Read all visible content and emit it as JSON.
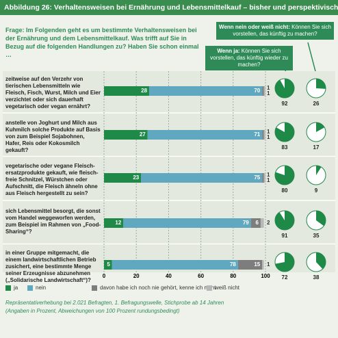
{
  "header": {
    "title": "Abbildung 26: Verhaltensweisen bei Ernährung und Lebensmittelkauf – bisher und perspektivisch"
  },
  "chart_data": {
    "type": "bar",
    "orientation": "horizontal",
    "stacked": true,
    "question": "Frage: Im Folgenden geht es um bestimmte Verhaltensweisen bei der Ernährung und dem Lebensmittelkauf. Was trifft auf Sie in Bezug auf die folgenden Handlungen zu? Haben Sie schon einmal …",
    "categories": [
      "zeitweise auf den Verzehr von tierischen Lebensmitteln wie Fleisch, Fisch, Wurst, Milch und Eier verzichtet oder sich dauerhaft vegetarisch oder vegan ernährt?",
      "anstelle von Joghurt und Milch aus Kuhmilch solche Produkte auf Basis von zum Beispiel Sojabohnen, Hafer, Reis oder Kokosmilch gekauft?",
      "vegetarische oder vegane Fleisch-ersatzprodukte gekauft, wie fleisch-freie Schnitzel, Würstchen oder Aufschnitt, die Fleisch ähneln ohne aus Fleisch hergestellt zu sein?",
      "sich Lebensmittel besorgt, die sonst vom Handel weggeworfen werden, zum Beispiel im Rahmen von „Food-Sharing“?",
      "in einer Gruppe mitgemacht, die einem landwirtschaftlichen Betrieb zusichert, eine bestimmte Menge seiner Erzeugnisse abzunehmen („Solidarische Landwirtschaft“)?"
    ],
    "series": [
      {
        "name": "ja",
        "color": "#1f8a48",
        "values": [
          28,
          27,
          23,
          12,
          5
        ]
      },
      {
        "name": "nein",
        "color": "#5fa8bf",
        "values": [
          70,
          71,
          75,
          79,
          78
        ]
      },
      {
        "name": "davon habe ich noch nie gehört, kenne ich nicht",
        "color": "#7d7d7d",
        "values": [
          1,
          1,
          1,
          6,
          15
        ]
      },
      {
        "name": "weiß nicht",
        "color": "#b8b8b8",
        "values": [
          1,
          1,
          1,
          2,
          1
        ]
      }
    ],
    "xlim": [
      0,
      100
    ],
    "xticks": [
      0,
      20,
      40,
      60,
      80,
      100
    ],
    "grid": true,
    "pies": [
      {
        "condition": "Wenn ja:",
        "question": "Können Sie sich vorstellen, das künftig wieder zu machen?",
        "color": "#1f8a48",
        "values": [
          92,
          83,
          80,
          91,
          72
        ]
      },
      {
        "condition": "Wenn nein oder weiß nicht:",
        "question": "Können Sie sich vorstellen, das künftig zu machen?",
        "color": "#1f8a48",
        "values": [
          26,
          17,
          9,
          35,
          38
        ]
      }
    ],
    "footnote": [
      "Repräsentativerhebung bei 2.021 Befragten, 1. Befragungswelle, Stichprobe ab 14 Jahren",
      "(Angaben in Prozent, Abweichungen von 100 Prozent rundungsbedingt)"
    ]
  }
}
